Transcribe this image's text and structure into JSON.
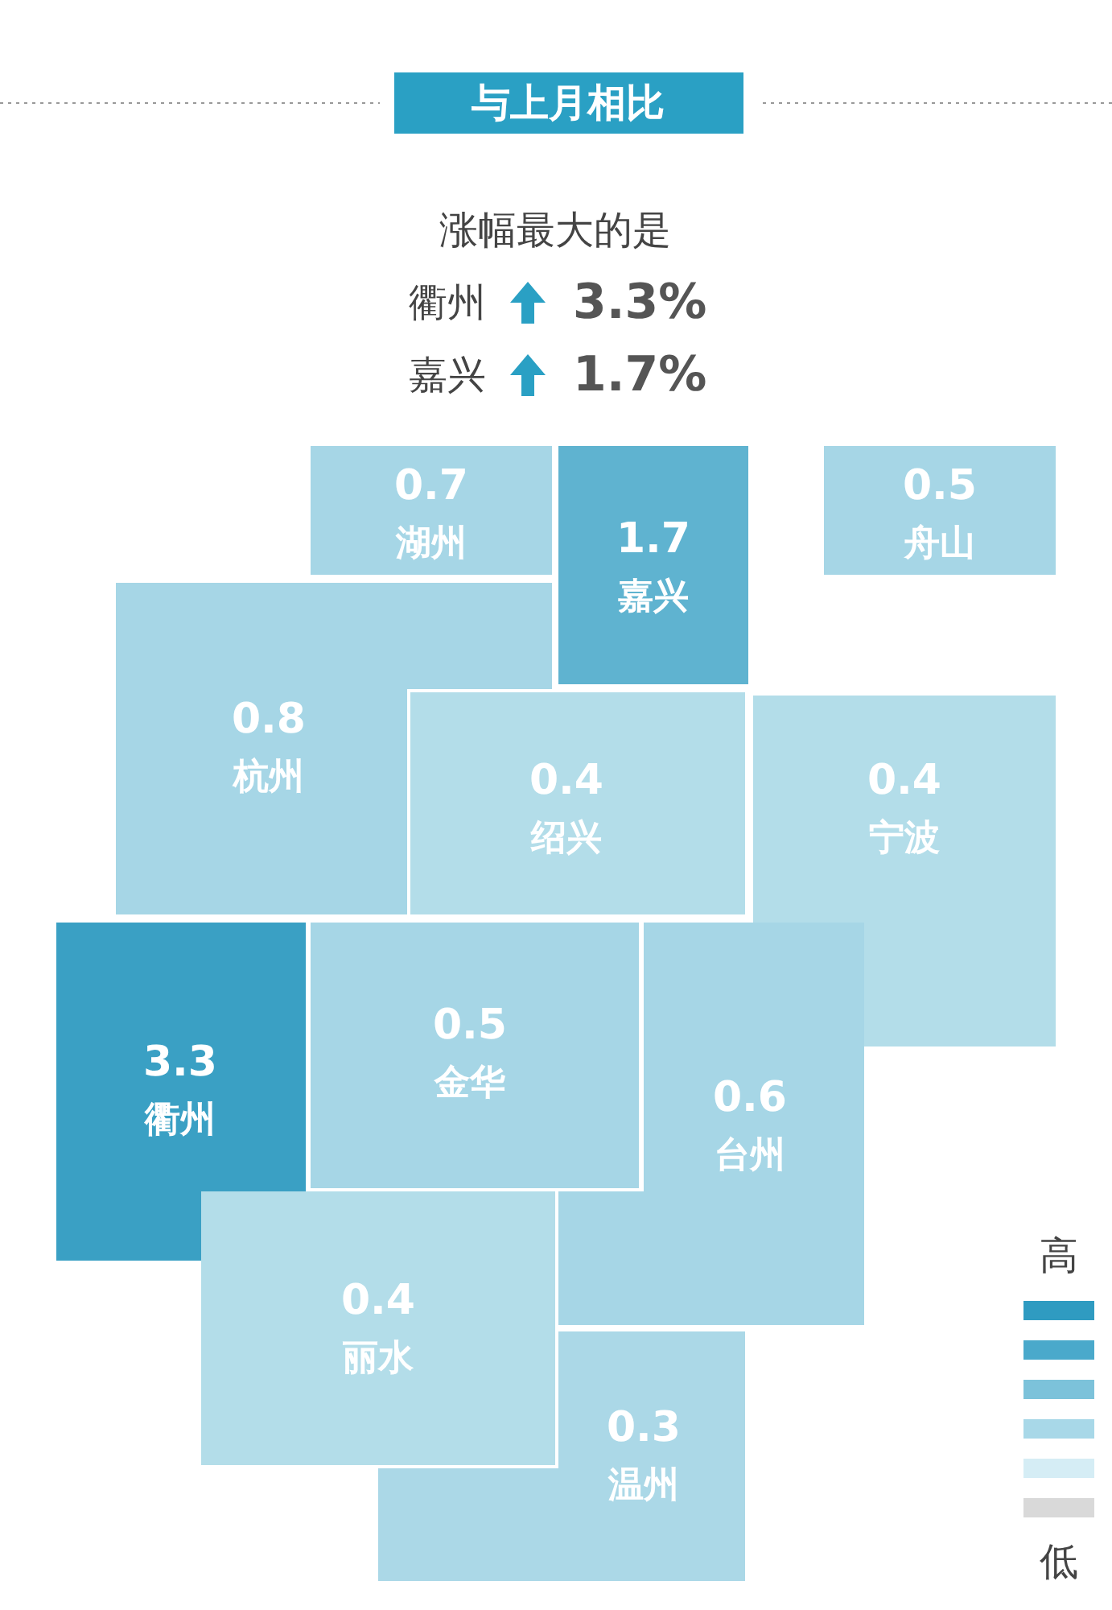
{
  "chart_data": {
    "type": "other",
    "title": "与上月相比",
    "subtitle": "涨幅最大的是",
    "categories": [
      "湖州",
      "嘉兴",
      "舟山",
      "杭州",
      "绍兴",
      "宁波",
      "衢州",
      "金华",
      "台州",
      "丽水",
      "温州"
    ],
    "values": [
      0.7,
      1.7,
      0.5,
      0.8,
      0.4,
      0.4,
      3.3,
      0.5,
      0.6,
      0.4,
      0.3
    ],
    "colors": [
      "#a6d6e6",
      "#5fb3d0",
      "#a6d6e6",
      "#a6d6e6",
      "#b3dde9",
      "#b3dde9",
      "#3aa0c4",
      "#a6d6e6",
      "#a6d6e6",
      "#b3dde9",
      "#abd8e7"
    ],
    "data_labels": true,
    "annotations": [
      "衢州",
      "3.3%",
      "嘉兴",
      "1.7%",
      "高",
      "低"
    ]
  }
}
